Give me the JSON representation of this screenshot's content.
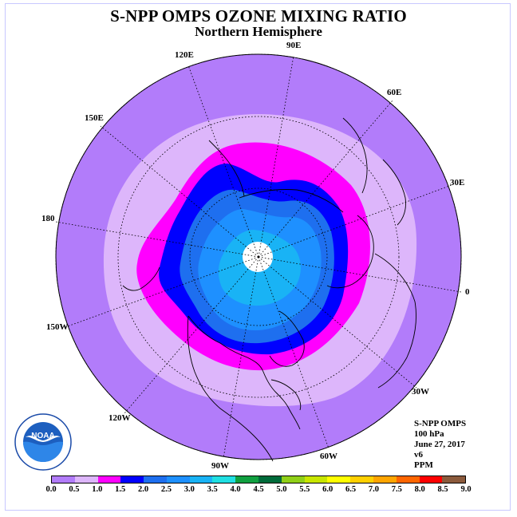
{
  "title": "S-NPP OMPS OZONE MIXING RATIO",
  "subtitle": "Northern Hemisphere",
  "longitude_labels": [
    "90E",
    "60E",
    "30E",
    "0",
    "30W",
    "60W",
    "90W",
    "120W",
    "150W",
    "180",
    "150E",
    "120E"
  ],
  "info": {
    "instrument": "S-NPP OMPS",
    "level": "100 hPa",
    "date": "June 27, 2017",
    "version": "v6",
    "units": "PPM"
  },
  "logo_text": "NOAA",
  "colorbar": {
    "ticks": [
      "0.0",
      "0.5",
      "1.0",
      "1.5",
      "2.0",
      "2.5",
      "3.0",
      "3.5",
      "4.0",
      "4.5",
      "5.0",
      "5.5",
      "6.0",
      "6.5",
      "7.0",
      "7.5",
      "8.0",
      "8.5",
      "9.0"
    ],
    "colors": [
      "#b27cfa",
      "#ddb6fb",
      "#ff00ff",
      "#0000ff",
      "#1e6fef",
      "#1e90ff",
      "#19b3f5",
      "#20dfe2",
      "#10a040",
      "#006b3a",
      "#90d018",
      "#c8e600",
      "#ffff00",
      "#ffd000",
      "#ffa500",
      "#ff6600",
      "#ff0000",
      "#8b5a3c"
    ]
  },
  "map_data": {
    "projection": "north polar stereographic",
    "field": "ozone mixing ratio",
    "region": "Northern Hemisphere",
    "color_level_colors": [
      "#b27cfa",
      "#ddb6fb",
      "#ff00ff",
      "#0000ff",
      "#1e6fef",
      "#1e90ff",
      "#19b3f5"
    ],
    "missing_data_color": "#ffffff"
  }
}
